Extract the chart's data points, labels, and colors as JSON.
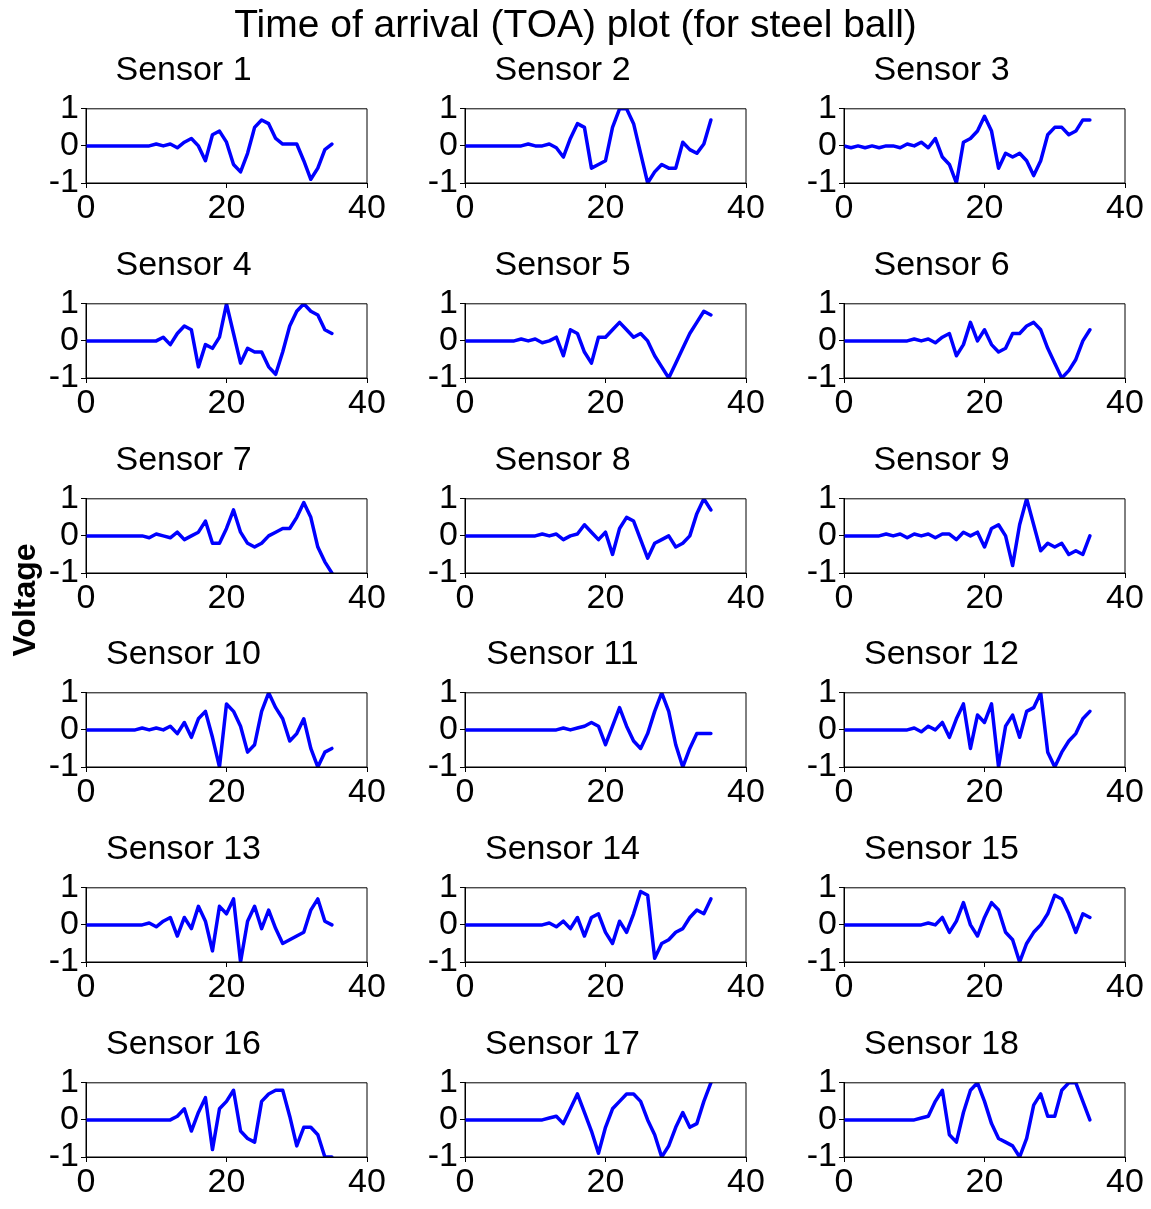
{
  "chart_data": [
    {
      "type": "other",
      "title": "Time of arrival (TOA) plot (for steel ball)",
      "ylabel": "Voltage"
    },
    {
      "type": "line",
      "title": "Sensor 1",
      "color": "#0000ff",
      "xlim": [
        0,
        40
      ],
      "xticks": [
        0,
        20,
        40
      ],
      "ylim": [
        -1,
        1
      ],
      "yticks": [
        -1,
        0,
        1
      ],
      "x": [
        0,
        1,
        2,
        3,
        4,
        5,
        6,
        7,
        8,
        9,
        10,
        11,
        12,
        13,
        14,
        15,
        16,
        17,
        18,
        19,
        20,
        21,
        22,
        23,
        24,
        25,
        26,
        27,
        28,
        29,
        30,
        31,
        32,
        33,
        34,
        35
      ],
      "values": [
        0,
        0,
        0,
        0,
        0,
        0,
        0,
        0,
        0,
        0,
        0.05,
        0,
        0.05,
        -0.05,
        0.1,
        0.2,
        0,
        -0.4,
        0.3,
        0.4,
        0.1,
        -0.5,
        -0.7,
        -0.2,
        0.5,
        0.7,
        0.6,
        0.2,
        0.05,
        0.05,
        0.05,
        -0.4,
        -0.9,
        -0.6,
        -0.1,
        0.05
      ]
    },
    {
      "type": "line",
      "title": "Sensor 2",
      "color": "#0000ff",
      "xlim": [
        0,
        40
      ],
      "xticks": [
        0,
        20,
        40
      ],
      "ylim": [
        -1,
        1
      ],
      "yticks": [
        -1,
        0,
        1
      ],
      "x": [
        0,
        1,
        2,
        3,
        4,
        5,
        6,
        7,
        8,
        9,
        10,
        11,
        12,
        13,
        14,
        15,
        16,
        17,
        18,
        19,
        20,
        21,
        22,
        23,
        24,
        25,
        26,
        27,
        28,
        29,
        30,
        31,
        32,
        33,
        34,
        35
      ],
      "values": [
        0,
        0,
        0,
        0,
        0,
        0,
        0,
        0,
        0,
        0.05,
        0,
        0,
        0.05,
        -0.05,
        -0.3,
        0.2,
        0.6,
        0.5,
        -0.6,
        -0.5,
        -0.4,
        0.5,
        1,
        1,
        0.6,
        -0.2,
        -1,
        -0.7,
        -0.5,
        -0.6,
        -0.6,
        0.1,
        -0.1,
        -0.2,
        0.05,
        0.7
      ]
    },
    {
      "type": "line",
      "title": "Sensor 3",
      "color": "#0000ff",
      "xlim": [
        0,
        40
      ],
      "xticks": [
        0,
        20,
        40
      ],
      "ylim": [
        -1,
        1
      ],
      "yticks": [
        -1,
        0,
        1
      ],
      "x": [
        0,
        1,
        2,
        3,
        4,
        5,
        6,
        7,
        8,
        9,
        10,
        11,
        12,
        13,
        14,
        15,
        16,
        17,
        18,
        19,
        20,
        21,
        22,
        23,
        24,
        25,
        26,
        27,
        28,
        29,
        30,
        31,
        32,
        33,
        34,
        35
      ],
      "values": [
        0,
        -0.05,
        0,
        -0.05,
        0,
        -0.05,
        0,
        0,
        -0.05,
        0.05,
        0,
        0.1,
        -0.05,
        0.2,
        -0.3,
        -0.5,
        -1,
        0.1,
        0.2,
        0.4,
        0.8,
        0.4,
        -0.6,
        -0.2,
        -0.3,
        -0.2,
        -0.4,
        -0.8,
        -0.4,
        0.3,
        0.5,
        0.5,
        0.3,
        0.4,
        0.7,
        0.7
      ]
    },
    {
      "type": "line",
      "title": "Sensor 4",
      "color": "#0000ff",
      "xlim": [
        0,
        40
      ],
      "xticks": [
        0,
        20,
        40
      ],
      "ylim": [
        -1,
        1
      ],
      "yticks": [
        -1,
        0,
        1
      ],
      "x": [
        0,
        1,
        2,
        3,
        4,
        5,
        6,
        7,
        8,
        9,
        10,
        11,
        12,
        13,
        14,
        15,
        16,
        17,
        18,
        19,
        20,
        21,
        22,
        23,
        24,
        25,
        26,
        27,
        28,
        29,
        30,
        31,
        32,
        33,
        34,
        35
      ],
      "values": [
        0,
        0,
        0,
        0,
        0,
        0,
        0,
        0,
        0,
        0,
        0,
        0.1,
        -0.1,
        0.2,
        0.4,
        0.3,
        -0.7,
        -0.1,
        -0.2,
        0.1,
        1,
        0.2,
        -0.6,
        -0.2,
        -0.3,
        -0.3,
        -0.7,
        -0.9,
        -0.3,
        0.4,
        0.8,
        1,
        0.8,
        0.7,
        0.3,
        0.2
      ]
    },
    {
      "type": "line",
      "title": "Sensor 5",
      "color": "#0000ff",
      "xlim": [
        0,
        40
      ],
      "xticks": [
        0,
        20,
        40
      ],
      "ylim": [
        -1,
        1
      ],
      "yticks": [
        -1,
        0,
        1
      ],
      "x": [
        0,
        1,
        2,
        3,
        4,
        5,
        6,
        7,
        8,
        9,
        10,
        11,
        12,
        13,
        14,
        15,
        16,
        17,
        18,
        19,
        20,
        21,
        22,
        23,
        24,
        25,
        26,
        27,
        28,
        29,
        30,
        31,
        32,
        33,
        34,
        35
      ],
      "values": [
        0,
        0,
        0,
        0,
        0,
        0,
        0,
        0,
        0.05,
        0,
        0.05,
        -0.05,
        0,
        0.1,
        -0.4,
        0.3,
        0.2,
        -0.3,
        -0.6,
        0.1,
        0.1,
        0.3,
        0.5,
        0.3,
        0.1,
        0.2,
        0,
        -0.4,
        -0.7,
        -1,
        -0.6,
        -0.2,
        0.2,
        0.5,
        0.8,
        0.7
      ]
    },
    {
      "type": "line",
      "title": "Sensor 6",
      "color": "#0000ff",
      "xlim": [
        0,
        40
      ],
      "xticks": [
        0,
        20,
        40
      ],
      "ylim": [
        -1,
        1
      ],
      "yticks": [
        -1,
        0,
        1
      ],
      "x": [
        0,
        1,
        2,
        3,
        4,
        5,
        6,
        7,
        8,
        9,
        10,
        11,
        12,
        13,
        14,
        15,
        16,
        17,
        18,
        19,
        20,
        21,
        22,
        23,
        24,
        25,
        26,
        27,
        28,
        29,
        30,
        31,
        32,
        33,
        34,
        35
      ],
      "values": [
        0,
        0,
        0,
        0,
        0,
        0,
        0,
        0,
        0,
        0,
        0.05,
        0,
        0.05,
        -0.05,
        0.1,
        0.2,
        -0.4,
        -0.1,
        0.5,
        0,
        0.3,
        -0.1,
        -0.3,
        -0.2,
        0.2,
        0.2,
        0.4,
        0.5,
        0.3,
        -0.2,
        -0.6,
        -1,
        -0.8,
        -0.5,
        0,
        0.3
      ]
    },
    {
      "type": "line",
      "title": "Sensor 7",
      "color": "#0000ff",
      "xlim": [
        0,
        40
      ],
      "xticks": [
        0,
        20,
        40
      ],
      "ylim": [
        -1,
        1
      ],
      "yticks": [
        -1,
        0,
        1
      ],
      "x": [
        0,
        1,
        2,
        3,
        4,
        5,
        6,
        7,
        8,
        9,
        10,
        11,
        12,
        13,
        14,
        15,
        16,
        17,
        18,
        19,
        20,
        21,
        22,
        23,
        24,
        25,
        26,
        27,
        28,
        29,
        30,
        31,
        32,
        33,
        34,
        35
      ],
      "values": [
        0,
        0,
        0,
        0,
        0,
        0,
        0,
        0,
        0,
        -0.05,
        0.05,
        0,
        -0.05,
        0.1,
        -0.1,
        0,
        0.1,
        0.4,
        -0.2,
        -0.2,
        0.2,
        0.7,
        0.1,
        -0.2,
        -0.3,
        -0.2,
        0,
        0.1,
        0.2,
        0.2,
        0.5,
        0.9,
        0.5,
        -0.3,
        -0.7,
        -1
      ]
    },
    {
      "type": "line",
      "title": "Sensor 8",
      "color": "#0000ff",
      "xlim": [
        0,
        40
      ],
      "xticks": [
        0,
        20,
        40
      ],
      "ylim": [
        -1,
        1
      ],
      "yticks": [
        -1,
        0,
        1
      ],
      "x": [
        0,
        1,
        2,
        3,
        4,
        5,
        6,
        7,
        8,
        9,
        10,
        11,
        12,
        13,
        14,
        15,
        16,
        17,
        18,
        19,
        20,
        21,
        22,
        23,
        24,
        25,
        26,
        27,
        28,
        29,
        30,
        31,
        32,
        33,
        34,
        35
      ],
      "values": [
        0,
        0,
        0,
        0,
        0,
        0,
        0,
        0,
        0,
        0,
        0,
        0.05,
        0,
        0.05,
        -0.1,
        0,
        0.05,
        0.3,
        0.1,
        -0.1,
        0.1,
        -0.5,
        0.2,
        0.5,
        0.4,
        -0.1,
        -0.6,
        -0.2,
        -0.1,
        0,
        -0.3,
        -0.2,
        0,
        0.6,
        1,
        0.7
      ]
    },
    {
      "type": "line",
      "title": "Sensor 9",
      "color": "#0000ff",
      "xlim": [
        0,
        40
      ],
      "xticks": [
        0,
        20,
        40
      ],
      "ylim": [
        -1,
        1
      ],
      "yticks": [
        -1,
        0,
        1
      ],
      "x": [
        0,
        1,
        2,
        3,
        4,
        5,
        6,
        7,
        8,
        9,
        10,
        11,
        12,
        13,
        14,
        15,
        16,
        17,
        18,
        19,
        20,
        21,
        22,
        23,
        24,
        25,
        26,
        27,
        28,
        29,
        30,
        31,
        32,
        33,
        34,
        35
      ],
      "values": [
        0,
        0,
        0,
        0,
        0,
        0,
        0.05,
        0,
        0.05,
        -0.05,
        0.05,
        0,
        0.05,
        -0.05,
        0.05,
        0.05,
        -0.1,
        0.1,
        0,
        0.1,
        -0.3,
        0.2,
        0.3,
        0,
        -0.8,
        0.3,
        1,
        0.3,
        -0.4,
        -0.2,
        -0.3,
        -0.2,
        -0.5,
        -0.4,
        -0.5,
        0
      ]
    },
    {
      "type": "line",
      "title": "Sensor 10",
      "color": "#0000ff",
      "xlim": [
        0,
        40
      ],
      "xticks": [
        0,
        20,
        40
      ],
      "ylim": [
        -1,
        1
      ],
      "yticks": [
        -1,
        0,
        1
      ],
      "x": [
        0,
        1,
        2,
        3,
        4,
        5,
        6,
        7,
        8,
        9,
        10,
        11,
        12,
        13,
        14,
        15,
        16,
        17,
        18,
        19,
        20,
        21,
        22,
        23,
        24,
        25,
        26,
        27,
        28,
        29,
        30,
        31,
        32,
        33,
        34,
        35
      ],
      "values": [
        0,
        0,
        0,
        0,
        0,
        0,
        0,
        0,
        0.05,
        0,
        0.05,
        0,
        0.1,
        -0.1,
        0.2,
        -0.2,
        0.3,
        0.5,
        -0.2,
        -1,
        0.7,
        0.5,
        0.1,
        -0.6,
        -0.4,
        0.5,
        1,
        0.6,
        0.3,
        -0.3,
        -0.1,
        0.3,
        -0.5,
        -1,
        -0.6,
        -0.5
      ]
    },
    {
      "type": "line",
      "title": "Sensor 11",
      "color": "#0000ff",
      "xlim": [
        0,
        40
      ],
      "xticks": [
        0,
        20,
        40
      ],
      "ylim": [
        -1,
        1
      ],
      "yticks": [
        -1,
        0,
        1
      ],
      "x": [
        0,
        1,
        2,
        3,
        4,
        5,
        6,
        7,
        8,
        9,
        10,
        11,
        12,
        13,
        14,
        15,
        16,
        17,
        18,
        19,
        20,
        21,
        22,
        23,
        24,
        25,
        26,
        27,
        28,
        29,
        30,
        31,
        32,
        33,
        34,
        35
      ],
      "values": [
        0,
        0,
        0,
        0,
        0,
        0,
        0,
        0,
        0,
        0,
        0,
        0,
        0,
        0,
        0.05,
        0,
        0.05,
        0.1,
        0.2,
        0.1,
        -0.4,
        0.1,
        0.6,
        0.1,
        -0.3,
        -0.5,
        -0.1,
        0.5,
        1,
        0.5,
        -0.4,
        -1,
        -0.5,
        -0.1,
        -0.1,
        -0.1
      ]
    },
    {
      "type": "line",
      "title": "Sensor 12",
      "color": "#0000ff",
      "xlim": [
        0,
        40
      ],
      "xticks": [
        0,
        20,
        40
      ],
      "ylim": [
        -1,
        1
      ],
      "yticks": [
        -1,
        0,
        1
      ],
      "x": [
        0,
        1,
        2,
        3,
        4,
        5,
        6,
        7,
        8,
        9,
        10,
        11,
        12,
        13,
        14,
        15,
        16,
        17,
        18,
        19,
        20,
        21,
        22,
        23,
        24,
        25,
        26,
        27,
        28,
        29,
        30,
        31,
        32,
        33,
        34,
        35
      ],
      "values": [
        0,
        0,
        0,
        0,
        0,
        0,
        0,
        0,
        0,
        0,
        0.05,
        -0.05,
        0.1,
        0,
        0.2,
        -0.2,
        0.3,
        0.7,
        -0.5,
        0.4,
        0.2,
        0.7,
        -1,
        0.1,
        0.4,
        -0.2,
        0.5,
        0.6,
        1,
        -0.6,
        -1,
        -0.6,
        -0.3,
        -0.1,
        0.3,
        0.5
      ]
    },
    {
      "type": "line",
      "title": "Sensor 13",
      "color": "#0000ff",
      "xlim": [
        0,
        40
      ],
      "xticks": [
        0,
        20,
        40
      ],
      "ylim": [
        -1,
        1
      ],
      "yticks": [
        -1,
        0,
        1
      ],
      "x": [
        0,
        1,
        2,
        3,
        4,
        5,
        6,
        7,
        8,
        9,
        10,
        11,
        12,
        13,
        14,
        15,
        16,
        17,
        18,
        19,
        20,
        21,
        22,
        23,
        24,
        25,
        26,
        27,
        28,
        29,
        30,
        31,
        32,
        33,
        34,
        35
      ],
      "values": [
        0,
        0,
        0,
        0,
        0,
        0,
        0,
        0,
        0,
        0.05,
        -0.05,
        0.1,
        0.2,
        -0.3,
        0.2,
        -0.1,
        0.5,
        0.1,
        -0.7,
        0.5,
        0.3,
        0.7,
        -1,
        0.1,
        0.5,
        -0.1,
        0.4,
        -0.1,
        -0.5,
        -0.4,
        -0.3,
        -0.2,
        0.4,
        0.7,
        0.1,
        0
      ]
    },
    {
      "type": "line",
      "title": "Sensor 14",
      "color": "#0000ff",
      "xlim": [
        0,
        40
      ],
      "xticks": [
        0,
        20,
        40
      ],
      "ylim": [
        -1,
        1
      ],
      "yticks": [
        -1,
        0,
        1
      ],
      "x": [
        0,
        1,
        2,
        3,
        4,
        5,
        6,
        7,
        8,
        9,
        10,
        11,
        12,
        13,
        14,
        15,
        16,
        17,
        18,
        19,
        20,
        21,
        22,
        23,
        24,
        25,
        26,
        27,
        28,
        29,
        30,
        31,
        32,
        33,
        34,
        35
      ],
      "values": [
        0,
        0,
        0,
        0,
        0,
        0,
        0,
        0,
        0,
        0,
        0,
        0,
        0.05,
        -0.05,
        0.1,
        -0.1,
        0.2,
        -0.3,
        0.2,
        0.3,
        -0.2,
        -0.5,
        0.1,
        -0.2,
        0.3,
        0.9,
        0.8,
        -0.9,
        -0.5,
        -0.4,
        -0.2,
        -0.1,
        0.2,
        0.4,
        0.3,
        0.7
      ]
    },
    {
      "type": "line",
      "title": "Sensor 15",
      "color": "#0000ff",
      "xlim": [
        0,
        40
      ],
      "xticks": [
        0,
        20,
        40
      ],
      "ylim": [
        -1,
        1
      ],
      "yticks": [
        -1,
        0,
        1
      ],
      "x": [
        0,
        1,
        2,
        3,
        4,
        5,
        6,
        7,
        8,
        9,
        10,
        11,
        12,
        13,
        14,
        15,
        16,
        17,
        18,
        19,
        20,
        21,
        22,
        23,
        24,
        25,
        26,
        27,
        28,
        29,
        30,
        31,
        32,
        33,
        34,
        35
      ],
      "values": [
        0,
        0,
        0,
        0,
        0,
        0,
        0,
        0,
        0,
        0,
        0,
        0,
        0.05,
        0,
        0.2,
        -0.2,
        0.1,
        0.6,
        0,
        -0.3,
        0.2,
        0.6,
        0.4,
        -0.2,
        -0.4,
        -1,
        -0.5,
        -0.2,
        0,
        0.3,
        0.8,
        0.7,
        0.3,
        -0.2,
        0.3,
        0.2
      ]
    },
    {
      "type": "line",
      "title": "Sensor 16",
      "color": "#0000ff",
      "xlim": [
        0,
        40
      ],
      "xticks": [
        0,
        20,
        40
      ],
      "ylim": [
        -1,
        1
      ],
      "yticks": [
        -1,
        0,
        1
      ],
      "x": [
        0,
        1,
        2,
        3,
        4,
        5,
        6,
        7,
        8,
        9,
        10,
        11,
        12,
        13,
        14,
        15,
        16,
        17,
        18,
        19,
        20,
        21,
        22,
        23,
        24,
        25,
        26,
        27,
        28,
        29,
        30,
        31,
        32,
        33,
        34,
        35
      ],
      "values": [
        0,
        0,
        0,
        0,
        0,
        0,
        0,
        0,
        0,
        0,
        0,
        0,
        0,
        0.1,
        0.3,
        -0.3,
        0.2,
        0.6,
        -0.8,
        0.3,
        0.5,
        0.8,
        -0.3,
        -0.5,
        -0.6,
        0.5,
        0.7,
        0.8,
        0.8,
        0.1,
        -0.7,
        -0.2,
        -0.2,
        -0.4,
        -1,
        -1
      ]
    },
    {
      "type": "line",
      "title": "Sensor 17",
      "color": "#0000ff",
      "xlim": [
        0,
        40
      ],
      "xticks": [
        0,
        20,
        40
      ],
      "ylim": [
        -1,
        1
      ],
      "yticks": [
        -1,
        0,
        1
      ],
      "x": [
        0,
        1,
        2,
        3,
        4,
        5,
        6,
        7,
        8,
        9,
        10,
        11,
        12,
        13,
        14,
        15,
        16,
        17,
        18,
        19,
        20,
        21,
        22,
        23,
        24,
        25,
        26,
        27,
        28,
        29,
        30,
        31,
        32,
        33,
        34,
        35
      ],
      "values": [
        0,
        0,
        0,
        0,
        0,
        0,
        0,
        0,
        0,
        0,
        0,
        0,
        0.05,
        0.1,
        -0.1,
        0.3,
        0.7,
        0.2,
        -0.3,
        -0.9,
        -0.2,
        0.3,
        0.5,
        0.7,
        0.7,
        0.5,
        0,
        -0.4,
        -1,
        -0.7,
        -0.2,
        0.2,
        -0.2,
        -0.1,
        0.5,
        1
      ]
    },
    {
      "type": "line",
      "title": "Sensor 18",
      "color": "#0000ff",
      "xlim": [
        0,
        40
      ],
      "xticks": [
        0,
        20,
        40
      ],
      "ylim": [
        -1,
        1
      ],
      "yticks": [
        -1,
        0,
        1
      ],
      "x": [
        0,
        1,
        2,
        3,
        4,
        5,
        6,
        7,
        8,
        9,
        10,
        11,
        12,
        13,
        14,
        15,
        16,
        17,
        18,
        19,
        20,
        21,
        22,
        23,
        24,
        25,
        26,
        27,
        28,
        29,
        30,
        31,
        32,
        33,
        34,
        35
      ],
      "values": [
        0,
        0,
        0,
        0,
        0,
        0,
        0,
        0,
        0,
        0,
        0,
        0.05,
        0.1,
        0.5,
        0.8,
        -0.4,
        -0.6,
        0.2,
        0.8,
        1,
        0.5,
        -0.1,
        -0.5,
        -0.6,
        -0.7,
        -1,
        -0.5,
        0.4,
        0.7,
        0.1,
        0.1,
        0.8,
        1,
        1,
        0.5,
        0
      ]
    }
  ]
}
